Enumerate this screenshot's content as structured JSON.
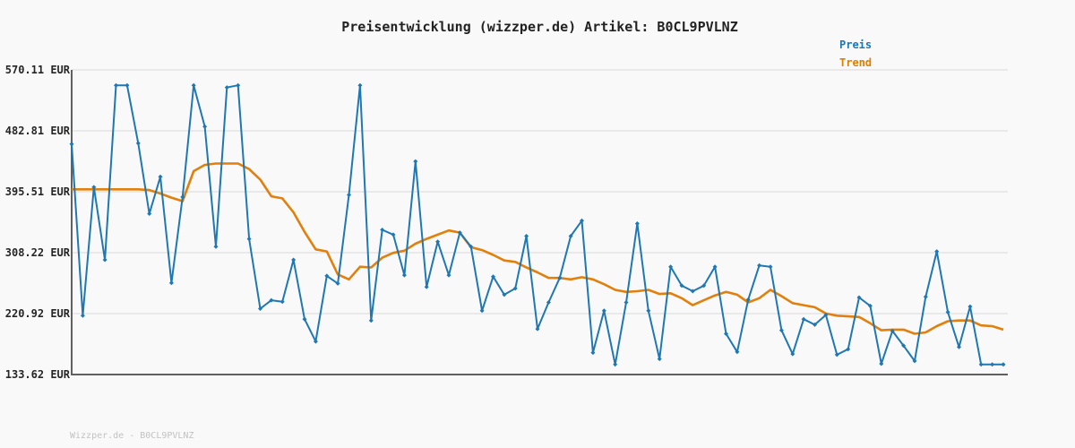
{
  "header": {
    "title": "Preisentwicklung (wizzper.de) Artikel: B0CL9PVLNZ"
  },
  "legend": {
    "items": [
      {
        "label": "Preis",
        "color": "#1778be"
      },
      {
        "label": "Trend",
        "color": "#de7e00"
      }
    ]
  },
  "y_axis": {
    "unit": "EUR",
    "tick_labels": [
      "570.11 EUR",
      "482.81 EUR",
      "395.51 EUR",
      "308.22 EUR",
      "220.92 EUR",
      "133.62 EUR"
    ]
  },
  "watermark": "Wizzper.de - B0CL9PVLNZ",
  "colors": {
    "background": "#f9f9f9",
    "grid": "#e4e4e4",
    "axis": "#606060",
    "price": "#1f77b4",
    "trend": "#e1800c",
    "watermark": "#c2c2c2"
  },
  "chart_data": {
    "type": "line",
    "title": "Preisentwicklung (wizzper.de) Artikel: B0CL9PVLNZ",
    "xlabel": "",
    "ylabel": "EUR",
    "ylim": [
      133.62,
      570.11
    ],
    "y_ticks": [
      570.11,
      482.81,
      395.51,
      308.22,
      220.92,
      133.62
    ],
    "grid": "horizontal",
    "legend_position": "top-right",
    "series": [
      {
        "name": "Preis",
        "color": "#1f77b4",
        "marker": "diamond",
        "values": [
          464,
          218,
          402,
          298,
          548,
          548,
          465,
          364,
          417,
          265,
          388,
          548,
          489,
          317,
          545,
          548,
          328,
          228,
          240,
          238,
          298,
          213,
          181,
          275,
          264,
          391,
          548,
          211,
          341,
          334,
          276,
          439,
          259,
          324,
          276,
          337,
          317,
          225,
          274,
          248,
          257,
          332,
          199,
          237,
          272,
          332,
          354,
          165,
          225,
          148,
          237,
          350,
          225,
          156,
          288,
          261,
          253,
          261,
          288,
          192,
          166,
          241,
          290,
          288,
          197,
          163,
          213,
          205,
          219,
          162,
          170,
          244,
          232,
          149,
          196,
          175,
          153,
          245,
          310,
          223,
          173,
          231,
          148,
          148,
          148
        ]
      },
      {
        "name": "Trend",
        "color": "#e1800c",
        "marker": "none",
        "values": [
          399,
          399,
          399,
          399,
          399,
          399,
          399,
          398,
          393,
          387,
          382,
          425,
          434,
          436,
          436,
          436,
          428,
          413,
          389,
          386,
          366,
          338,
          313,
          310,
          277,
          270,
          288,
          287,
          301,
          308,
          311,
          321,
          328,
          334,
          340,
          337,
          316,
          312,
          305,
          297,
          295,
          287,
          280,
          272,
          272,
          270,
          273,
          270,
          263,
          255,
          252,
          253,
          255,
          249,
          250,
          243,
          233,
          240,
          247,
          252,
          248,
          237,
          243,
          255,
          246,
          236,
          233,
          230,
          221,
          218,
          217,
          216,
          207,
          197,
          198,
          198,
          192,
          194,
          203,
          210,
          211,
          211,
          204,
          203,
          198
        ]
      }
    ]
  }
}
